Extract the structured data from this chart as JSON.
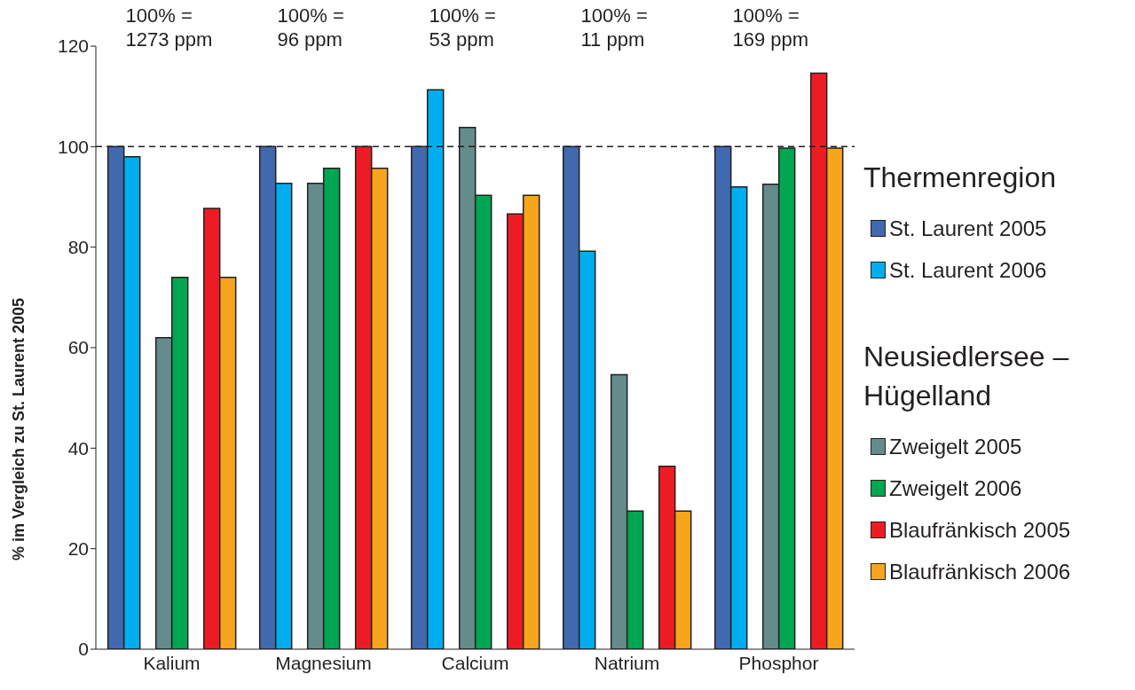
{
  "chart_data": {
    "type": "bar",
    "ylabel": "% im Vergleich zu St. Laurent 2005",
    "categories": [
      "Kalium",
      "Magnesium",
      "Calcium",
      "Natrium",
      "Phosphor"
    ],
    "series": [
      {
        "name": "St. Laurent 2005",
        "color": "#4169b0",
        "values": [
          100,
          100,
          100,
          100,
          100
        ]
      },
      {
        "name": "St. Laurent 2006",
        "color": "#00aeef",
        "values": [
          98,
          92.7,
          111.3,
          79.2,
          92
        ]
      },
      {
        "name": "Zweigelt 2005",
        "color": "#648c8a",
        "values": [
          62,
          92.7,
          103.8,
          54.6,
          92.5
        ]
      },
      {
        "name": "Zweigelt 2006",
        "color": "#00a651",
        "values": [
          74,
          95.7,
          90.3,
          27.5,
          99.7
        ]
      },
      {
        "name": "Blaufränkisch 2005",
        "color": "#ed1c24",
        "values": [
          87.7,
          100,
          86.6,
          36.4,
          114.6
        ]
      },
      {
        "name": "Blaufränkisch 2006",
        "color": "#f7a51c",
        "values": [
          74,
          95.7,
          90.3,
          27.5,
          99.7
        ]
      }
    ],
    "ylim": [
      0,
      120
    ],
    "yticks": [
      0,
      20,
      40,
      60,
      80,
      100,
      120
    ],
    "ref_lines": [
      {
        "axis": "y",
        "value": 100,
        "line_style": "dashed",
        "color": "#231f20"
      }
    ],
    "legend": "right",
    "legend_title": [
      "Thermenregion",
      "Neusiedlersee –\nHügelland"
    ],
    "annotations": [
      "100% =\n1273 ppm",
      "100% =\n96 ppm",
      "100% =\n53 ppm",
      "100% =\n11 ppm",
      "100% =\n169 ppm"
    ]
  }
}
